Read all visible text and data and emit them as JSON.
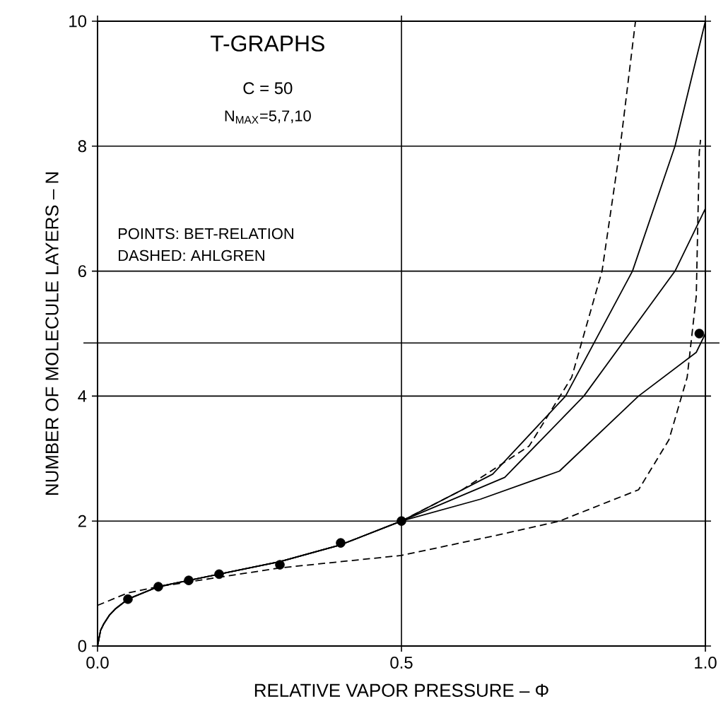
{
  "chart_data": {
    "type": "line",
    "title": "T-GRAPHS",
    "annotations": [
      "C = 50",
      "N$_{MAX}$=5,7,10",
      "POINTS: BET-RELATION",
      "DASHED: AHLGREN"
    ],
    "xlabel": "RELATIVE VAPOR PRESSURE – Φ",
    "ylabel": "NUMBER OF MOLECULE LAYERS – N",
    "xlim": [
      0,
      1
    ],
    "ylim": [
      0,
      10
    ],
    "xticks": [
      {
        "value": 0,
        "label": "0.0"
      },
      {
        "value": 0.5,
        "label": "0.5"
      },
      {
        "value": 1,
        "label": "1.0"
      }
    ],
    "yticks": [
      0,
      2,
      4,
      6,
      8,
      10
    ],
    "grid": true,
    "ref_lines": [
      {
        "axis": "y",
        "value": 4.85,
        "color": "#000000"
      }
    ],
    "series": [
      {
        "line_style": "solid",
        "color": "#000000",
        "x": [
          0,
          0.005,
          0.01,
          0.02,
          0.03,
          0.05,
          0.1,
          0.2,
          0.3,
          0.4,
          0.5,
          0.63,
          0.76,
          0.89,
          0.985,
          1.0
        ],
        "values": [
          0,
          0.25,
          0.35,
          0.5,
          0.6,
          0.75,
          0.95,
          1.15,
          1.35,
          1.62,
          2.0,
          2.35,
          2.8,
          4.0,
          4.7,
          5.0
        ]
      },
      {
        "line_style": "solid",
        "color": "#000000",
        "x": [
          0,
          0.005,
          0.01,
          0.02,
          0.03,
          0.05,
          0.1,
          0.2,
          0.3,
          0.4,
          0.5,
          0.67,
          0.8,
          0.95,
          1.0
        ],
        "values": [
          0,
          0.25,
          0.35,
          0.5,
          0.6,
          0.75,
          0.95,
          1.15,
          1.35,
          1.62,
          2.0,
          2.7,
          4.0,
          6.0,
          7.0
        ]
      },
      {
        "line_style": "solid",
        "color": "#000000",
        "x": [
          0,
          0.005,
          0.01,
          0.02,
          0.03,
          0.05,
          0.1,
          0.2,
          0.3,
          0.4,
          0.5,
          0.65,
          0.77,
          0.88,
          0.95,
          1.0
        ],
        "values": [
          0,
          0.25,
          0.35,
          0.5,
          0.6,
          0.75,
          0.95,
          1.15,
          1.35,
          1.62,
          2.0,
          2.75,
          4.0,
          6.0,
          8.0,
          10.0
        ]
      },
      {
        "line_style": "dashed",
        "color": "#000000",
        "x": [
          0.5,
          0.6,
          0.71,
          0.78,
          0.83,
          0.86,
          0.885
        ],
        "values": [
          2.0,
          2.5,
          3.2,
          4.3,
          6.0,
          8.0,
          10.0
        ]
      },
      {
        "line_style": "dashed",
        "color": "#000000",
        "x": [
          0,
          0.05,
          0.1,
          0.2,
          0.3,
          0.5,
          0.67,
          0.76,
          0.89,
          0.94,
          0.97,
          0.985,
          0.99,
          0.992
        ],
        "values": [
          0.65,
          0.85,
          0.95,
          1.1,
          1.25,
          1.45,
          1.8,
          2.0,
          2.5,
          3.3,
          4.3,
          5.6,
          7.9,
          8.1
        ]
      },
      {
        "type": "scatter",
        "marker": "circle",
        "color": "#000000",
        "x": [
          0.05,
          0.1,
          0.15,
          0.2,
          0.3,
          0.4,
          0.5,
          0.99
        ],
        "values": [
          0.75,
          0.95,
          1.05,
          1.15,
          1.3,
          1.65,
          2.0,
          5.0
        ]
      }
    ]
  }
}
